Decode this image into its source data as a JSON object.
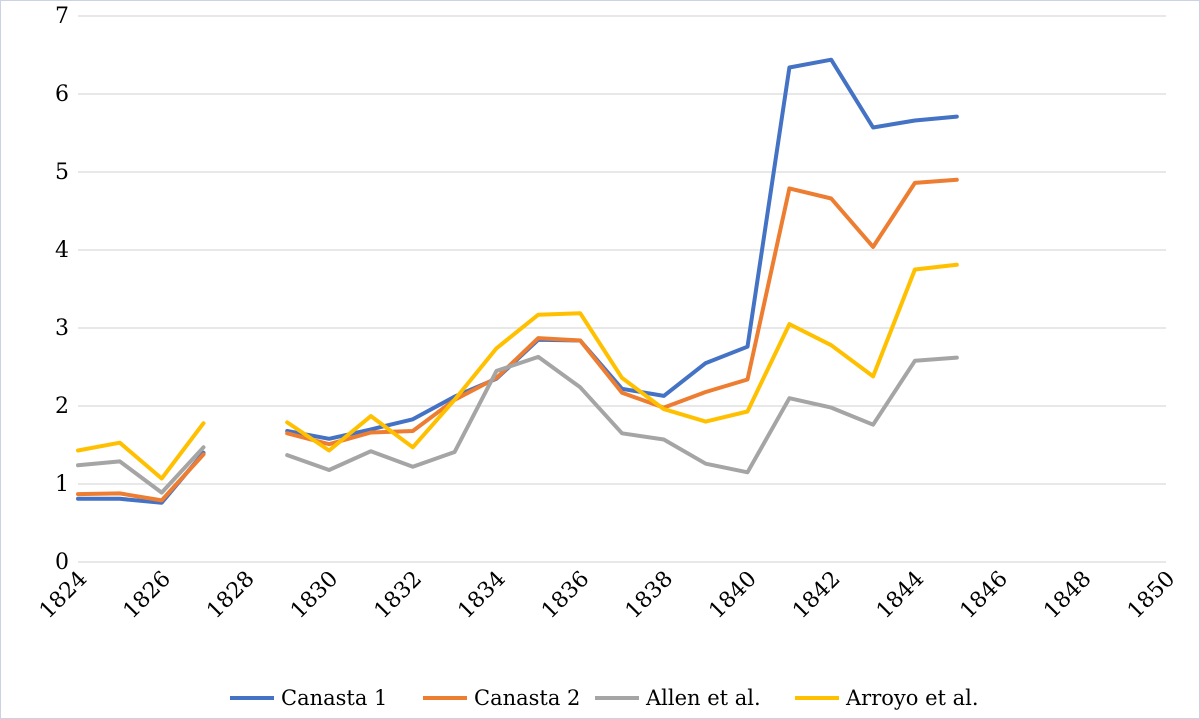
{
  "chart_data": {
    "type": "line",
    "title": "",
    "xlabel": "",
    "ylabel": "",
    "xlim": [
      1824,
      1850
    ],
    "ylim": [
      0,
      7
    ],
    "grid": true,
    "legend_position": "bottom",
    "x_ticks": [
      "1824",
      "1826",
      "1828",
      "1830",
      "1832",
      "1834",
      "1836",
      "1838",
      "1840",
      "1842",
      "1844",
      "1846",
      "1848",
      "1850"
    ],
    "y_ticks": [
      "0",
      "1",
      "2",
      "3",
      "4",
      "5",
      "6",
      "7"
    ],
    "x": [
      1824,
      1825,
      1826,
      1827,
      1828,
      1829,
      1830,
      1831,
      1832,
      1833,
      1834,
      1835,
      1836,
      1837,
      1838,
      1839,
      1840,
      1841,
      1842,
      1843,
      1844,
      1845
    ],
    "series": [
      {
        "name": "Canasta 1",
        "color": "#4472C4",
        "values": [
          0.81,
          0.81,
          0.76,
          1.4,
          null,
          1.68,
          1.58,
          1.7,
          1.83,
          2.12,
          2.35,
          2.85,
          2.84,
          2.22,
          2.13,
          2.55,
          2.76,
          6.34,
          6.44,
          5.57,
          5.66,
          5.71
        ]
      },
      {
        "name": "Canasta 2",
        "color": "#ED7D31",
        "values": [
          0.87,
          0.88,
          0.79,
          1.38,
          null,
          1.65,
          1.51,
          1.66,
          1.68,
          2.08,
          2.36,
          2.87,
          2.84,
          2.17,
          1.98,
          2.18,
          2.34,
          4.79,
          4.66,
          4.04,
          4.86,
          4.9
        ]
      },
      {
        "name": "Allen et al.",
        "color": "#A5A5A5",
        "values": [
          1.24,
          1.29,
          0.89,
          1.47,
          null,
          1.37,
          1.18,
          1.42,
          1.22,
          1.41,
          2.45,
          2.63,
          2.24,
          1.65,
          1.57,
          1.26,
          1.15,
          2.1,
          1.98,
          1.76,
          2.58,
          2.62
        ]
      },
      {
        "name": "Arroyo et al.",
        "color": "#FFC000",
        "values": [
          1.43,
          1.53,
          1.07,
          1.78,
          null,
          1.79,
          1.43,
          1.87,
          1.47,
          2.08,
          2.74,
          3.17,
          3.19,
          2.36,
          1.96,
          1.8,
          1.93,
          3.05,
          2.78,
          2.38,
          3.75,
          3.81
        ]
      }
    ]
  }
}
